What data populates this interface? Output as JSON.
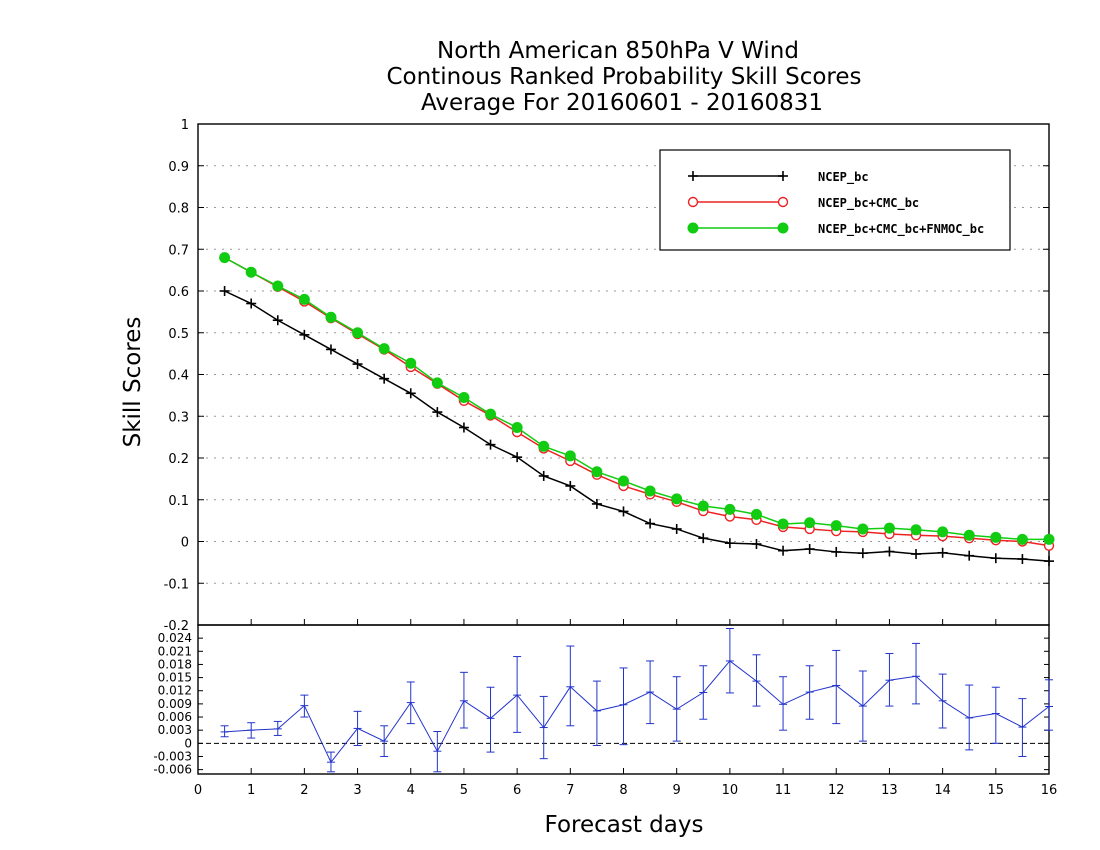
{
  "chart_data": {
    "type": "line",
    "title": [
      "North American 850hPa V Wind",
      "Continous Ranked Probability Skill Scores",
      "Average For 20160601 - 20160831"
    ],
    "xlabel": "Forecast days",
    "ylabel": "Skill Scores",
    "xlim": [
      0,
      16
    ],
    "x_ticks": [
      "0",
      "1",
      "2",
      "3",
      "4",
      "5",
      "6",
      "7",
      "8",
      "9",
      "10",
      "11",
      "12",
      "13",
      "14",
      "15",
      "16"
    ],
    "top_panel": {
      "ylim": [
        -0.2,
        1
      ],
      "y_ticks": [
        "1",
        "0.9",
        "0.8",
        "0.7",
        "0.6",
        "0.5",
        "0.4",
        "0.3",
        "0.2",
        "0.1",
        "0",
        "-0.1",
        "-0.2"
      ],
      "grid": "dotted horizontal",
      "legend_position": "top-right",
      "x": [
        0.5,
        1,
        1.5,
        2,
        2.5,
        3,
        3.5,
        4,
        4.5,
        5,
        5.5,
        6,
        6.5,
        7,
        7.5,
        8,
        8.5,
        9,
        9.5,
        10,
        10.5,
        11,
        11.5,
        12,
        12.5,
        13,
        13.5,
        14,
        14.5,
        15,
        15.5,
        16
      ],
      "series": [
        {
          "name": "NCEP_bc",
          "color": "#000000",
          "marker": "plus",
          "values": [
            0.6,
            0.57,
            0.53,
            0.495,
            0.46,
            0.425,
            0.39,
            0.355,
            0.31,
            0.273,
            0.232,
            0.202,
            0.157,
            0.133,
            0.09,
            0.072,
            0.043,
            0.03,
            0.008,
            -0.004,
            -0.006,
            -0.022,
            -0.018,
            -0.025,
            -0.028,
            -0.024,
            -0.03,
            -0.027,
            -0.034,
            -0.04,
            -0.042,
            -0.047
          ]
        },
        {
          "name": "NCEP_bc+CMC_bc",
          "color": "#ee2222",
          "marker": "open-circle",
          "values": [
            0.68,
            0.645,
            0.61,
            0.575,
            0.535,
            0.497,
            0.46,
            0.418,
            0.378,
            0.337,
            0.302,
            0.262,
            0.223,
            0.193,
            0.16,
            0.133,
            0.113,
            0.095,
            0.073,
            0.06,
            0.052,
            0.035,
            0.03,
            0.025,
            0.023,
            0.018,
            0.015,
            0.013,
            0.008,
            0.003,
            0.0,
            -0.01
          ]
        },
        {
          "name": "NCEP_bc+CMC_bc+FNMOC_bc",
          "color": "#11cc11",
          "marker": "filled-circle",
          "values": [
            0.68,
            0.645,
            0.612,
            0.58,
            0.537,
            0.5,
            0.462,
            0.427,
            0.38,
            0.345,
            0.305,
            0.273,
            0.228,
            0.205,
            0.167,
            0.145,
            0.121,
            0.102,
            0.085,
            0.077,
            0.065,
            0.042,
            0.045,
            0.038,
            0.03,
            0.032,
            0.028,
            0.023,
            0.015,
            0.01,
            0.005,
            0.005
          ]
        }
      ]
    },
    "bottom_panel": {
      "ylim": [
        -0.007,
        0.027
      ],
      "y_ticks": [
        "0.024",
        "0.021",
        "0.018",
        "0.015",
        "0.012",
        "0.009",
        "0.006",
        "0.003",
        "0",
        "-0.003",
        "-0.006"
      ],
      "color": "#2233cc",
      "x": [
        0.5,
        1,
        1.5,
        2,
        2.5,
        3,
        3.5,
        4,
        4.5,
        5,
        5.5,
        6,
        6.5,
        7,
        7.5,
        8,
        8.5,
        9,
        9.5,
        10,
        10.5,
        11,
        11.5,
        12,
        12.5,
        13,
        13.5,
        14,
        14.5,
        15,
        15.5,
        16
      ],
      "values": [
        0.0026,
        0.003,
        0.0033,
        0.0086,
        -0.0043,
        0.0034,
        0.0005,
        0.0093,
        -0.0018,
        0.0097,
        0.0057,
        0.011,
        0.0036,
        0.0129,
        0.0074,
        0.0088,
        0.0117,
        0.0078,
        0.0116,
        0.0188,
        0.0142,
        0.0089,
        0.0117,
        0.0132,
        0.0085,
        0.0144,
        0.0153,
        0.0097,
        0.0058,
        0.0068,
        0.0037,
        0.0084
      ],
      "lower": [
        0.0015,
        0.0012,
        0.0018,
        0.006,
        -0.0065,
        -0.0005,
        -0.003,
        0.0045,
        -0.0065,
        0.0035,
        -0.002,
        0.0025,
        -0.0035,
        0.004,
        -0.0005,
        -0.0003,
        0.0045,
        0.0005,
        0.0055,
        0.0115,
        0.0085,
        0.003,
        0.0055,
        0.0045,
        0.0005,
        0.0085,
        0.009,
        0.0035,
        -0.0015,
        0.0,
        -0.003,
        0.003
      ],
      "upper": [
        0.004,
        0.0047,
        0.005,
        0.011,
        -0.002,
        0.0073,
        0.004,
        0.014,
        0.0027,
        0.0162,
        0.0128,
        0.0198,
        0.0107,
        0.0222,
        0.0142,
        0.0172,
        0.0188,
        0.0152,
        0.0177,
        0.0262,
        0.0202,
        0.0152,
        0.0177,
        0.0212,
        0.0165,
        0.0205,
        0.0228,
        0.0158,
        0.0133,
        0.0128,
        0.0102,
        0.0145
      ]
    }
  }
}
